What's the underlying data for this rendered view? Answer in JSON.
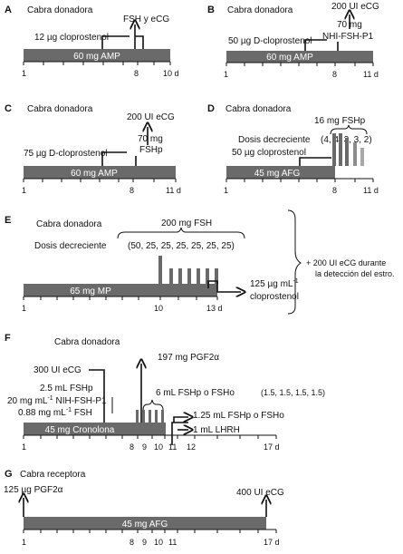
{
  "colors": {
    "bar": "#6a6a6a",
    "line": "#111111",
    "gray_light": "#a8a8a8"
  },
  "panels": {
    "A": {
      "letter": "A",
      "animal": "Cabra donadora",
      "bar": "60 mg AMP",
      "ann1": "12 µg cloprostenol",
      "ann2": "FSH y eCG",
      "ticks": [
        "1",
        "8",
        "10 d"
      ]
    },
    "B": {
      "letter": "B",
      "animal": "Cabra donadora",
      "bar": "60 mg AMP",
      "ann1": "50 µg D-cloprostenol",
      "ann2": "200 UI eCG",
      "ann3": "70 mg",
      "ann4": "NHI-FSH-P1",
      "ticks": [
        "1",
        "8",
        "11 d"
      ]
    },
    "C": {
      "letter": "C",
      "animal": "Cabra donadora",
      "bar": "60 mg AMP",
      "ann1": "75 µg D-cloprostenol",
      "ann2": "200 UI eCG",
      "ann3": "70 mg",
      "ann4": "FSHp",
      "ticks": [
        "1",
        "8",
        "11 d"
      ]
    },
    "D": {
      "letter": "D",
      "animal": "Cabra donadora",
      "bar": "45 mg AFG",
      "ann1": "16 mg FSHp",
      "ann2": "Dosis decreciente",
      "ann3": "(4, 4, 3, 3, 2)",
      "ann4": "50 µg cloprostenol",
      "ticks": [
        "1",
        "8",
        "11 d"
      ]
    },
    "E": {
      "letter": "E",
      "animal": "Cabra donadora",
      "bar": "65 mg MP",
      "ann1": "200 mg FSH",
      "ann2": "Dosis decreciente",
      "ann3": "(50, 25, 25, 25, 25, 25, 25)",
      "ann4": "125 µg mL",
      "ann4_sup": "-1",
      "ann5": "cloprostenol",
      "side1": "+  200 UI eCG durante",
      "side2": "la detección del estro.",
      "ticks": [
        "1",
        "10",
        "13 d"
      ]
    },
    "F": {
      "letter": "F",
      "animal": "Cabra donadora",
      "bar": "45 mg Cronolona",
      "ann1": "197 mg PGF2α",
      "ann2": "300 UI eCG",
      "ann3": "2.5 mL FSHp",
      "ann4": "20 mg mL",
      "ann4_sup": "-1",
      "ann4_tail": " NIH-FSH-P1",
      "ann5": "0.88 mg mL",
      "ann5_sup": "-1",
      "ann5_tail": " FSH",
      "ann6": "6 mL FSHp o FSHo",
      "ann6_b": "(1.5, 1.5, 1.5, 1.5)",
      "ann7": "1.25 mL FSHp o FSHo",
      "ann8": "1 mL LHRH",
      "ticks": [
        "1",
        "8",
        "9",
        "10",
        "11",
        "12",
        "17 d"
      ]
    },
    "G": {
      "letter": "G",
      "animal": "Cabra receptora",
      "bar": "45 mg AFG",
      "ann1": "125 µg PGF2α",
      "ann2": "400 UI eCG",
      "ticks": [
        "1",
        "8",
        "9",
        "10",
        "11",
        "17 d"
      ]
    }
  }
}
